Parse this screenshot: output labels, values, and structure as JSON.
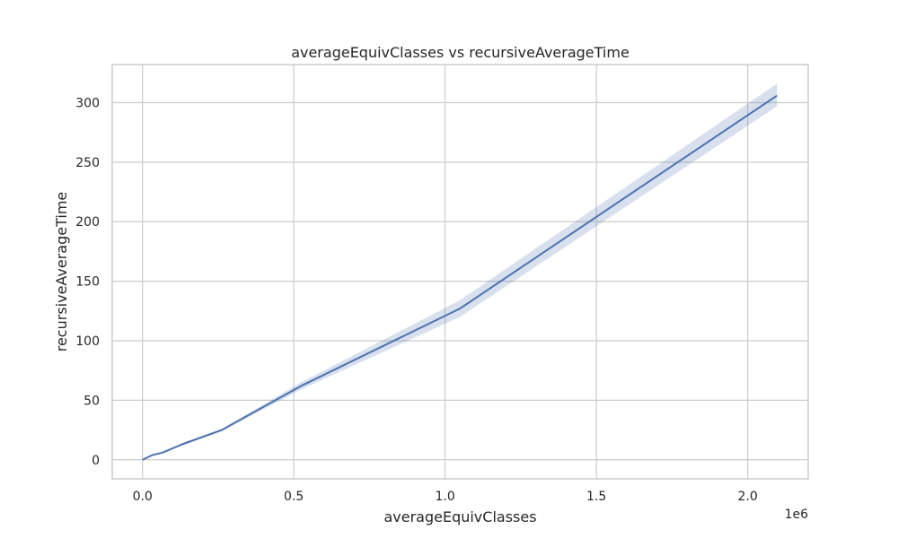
{
  "chart_data": {
    "type": "line",
    "title": "averageEquivClasses vs recursiveAverageTime",
    "xlabel": "averageEquivClasses",
    "ylabel": "recursiveAverageTime",
    "x_offset_label": "1e6",
    "xlim": [
      -0.1,
      2.2
    ],
    "ylim": [
      -16,
      332
    ],
    "x_ticks": [
      0.0,
      0.5,
      1.0,
      1.5,
      2.0
    ],
    "x_tick_labels": [
      "0.0",
      "0.5",
      "1.0",
      "1.5",
      "2.0"
    ],
    "y_ticks": [
      0,
      50,
      100,
      150,
      200,
      250,
      300
    ],
    "y_tick_labels": [
      "0",
      "50",
      "100",
      "150",
      "200",
      "250",
      "300"
    ],
    "grid": true,
    "series": [
      {
        "color": "#4c72b0",
        "band_color": "#4c72b0",
        "x": [
          0.0,
          0.033,
          0.066,
          0.131,
          0.262,
          0.524,
          1.049,
          2.097
        ],
        "y": [
          0,
          4,
          6,
          13,
          25,
          62,
          127,
          306
        ],
        "y_lower": [
          0,
          3.5,
          5.5,
          12,
          24,
          59,
          120,
          297
        ],
        "y_upper": [
          0,
          4.5,
          6.5,
          14,
          26,
          65,
          134,
          316
        ]
      }
    ]
  }
}
